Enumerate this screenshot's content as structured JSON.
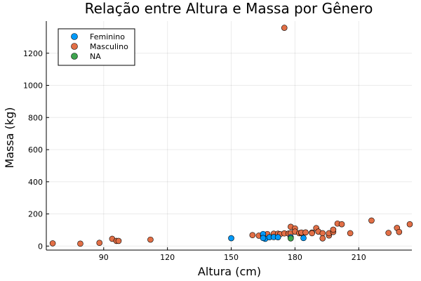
{
  "chart_data": {
    "type": "scatter",
    "title": "Relação entre Altura e Massa por Gênero",
    "xlabel": "Altura (cm)",
    "ylabel": "Massa (kg)",
    "xlim": [
      63,
      235
    ],
    "ylim": [
      -25,
      1400
    ],
    "xticks": [
      90,
      120,
      150,
      180,
      210
    ],
    "yticks": [
      0,
      200,
      400,
      600,
      800,
      1000,
      1200
    ],
    "grid": true,
    "legend_position": "top-left",
    "series": [
      {
        "name": "Feminino",
        "color": "#009AFA",
        "points": [
          [
            150,
            49
          ],
          [
            165,
            75
          ],
          [
            166,
            45
          ],
          [
            168,
            55
          ],
          [
            170,
            56
          ],
          [
            172,
            55
          ],
          [
            178,
            55
          ],
          [
            184,
            50
          ],
          [
            165,
            50
          ]
        ]
      },
      {
        "name": "Masculino",
        "color": "#E26F46",
        "points": [
          [
            66,
            17
          ],
          [
            79,
            15
          ],
          [
            88,
            20
          ],
          [
            94,
            45
          ],
          [
            96,
            32
          ],
          [
            97,
            32
          ],
          [
            112,
            40
          ],
          [
            160,
            68
          ],
          [
            163,
            65
          ],
          [
            165,
            70
          ],
          [
            167,
            75
          ],
          [
            170,
            77
          ],
          [
            172,
            77
          ],
          [
            173,
            74
          ],
          [
            175,
            1358
          ],
          [
            175,
            79
          ],
          [
            177,
            78
          ],
          [
            178,
            120
          ],
          [
            178,
            80
          ],
          [
            180,
            110
          ],
          [
            180,
            90
          ],
          [
            182,
            80
          ],
          [
            183,
            80
          ],
          [
            183,
            84
          ],
          [
            185,
            85
          ],
          [
            188,
            84
          ],
          [
            188,
            80
          ],
          [
            190,
            112
          ],
          [
            191,
            90
          ],
          [
            193,
            80
          ],
          [
            193,
            48
          ],
          [
            196,
            66
          ],
          [
            196,
            80
          ],
          [
            198,
            88
          ],
          [
            198,
            102
          ],
          [
            200,
            140
          ],
          [
            202,
            136
          ],
          [
            206,
            80
          ],
          [
            216,
            159
          ],
          [
            224,
            82
          ],
          [
            228,
            113
          ],
          [
            229,
            88
          ],
          [
            234,
            136
          ]
        ]
      },
      {
        "name": "NA",
        "color": "#3EA44E",
        "points": [
          [
            178,
            48
          ]
        ]
      }
    ]
  }
}
